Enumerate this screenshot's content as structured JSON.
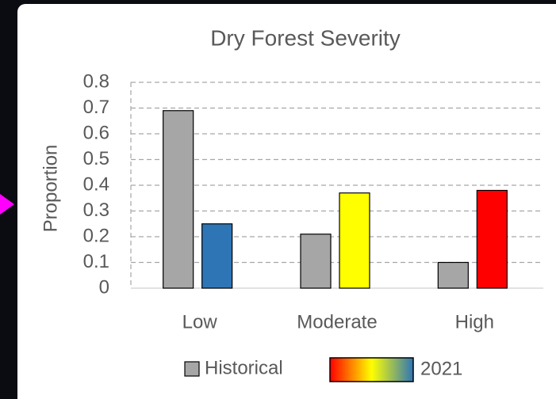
{
  "chart_data": {
    "type": "bar",
    "title": "Dry Forest Severity",
    "y_label": "Proportion",
    "categories": [
      "Low",
      "Moderate",
      "High"
    ],
    "series": [
      {
        "name": "Historical",
        "color": "#a6a6a6",
        "values": [
          0.69,
          0.21,
          0.1
        ]
      },
      {
        "name": "2021",
        "colors": [
          "#2e75b6",
          "#ffff00",
          "#ff0000"
        ],
        "values": [
          0.25,
          0.37,
          0.38
        ]
      }
    ],
    "ylim": [
      0,
      0.8
    ],
    "yticks": [
      0,
      0.1,
      0.2,
      0.3,
      0.4,
      0.5,
      0.6,
      0.7,
      0.8
    ],
    "grid": true,
    "legend": "bottom"
  }
}
